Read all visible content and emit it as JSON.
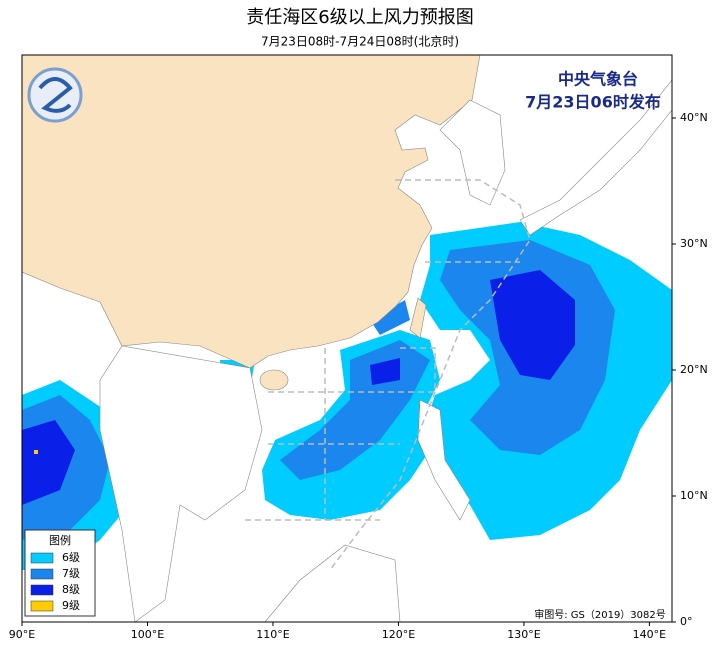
{
  "header": {
    "title": "责任海区6级以上风力预报图",
    "subtitle": "7月23日08时-7月24日08时(北京时)"
  },
  "issuer": {
    "name": "中央气象台",
    "time": "7月23日06时发布"
  },
  "legend": {
    "title": "图例",
    "items": [
      {
        "label": "6级",
        "color": "#00ccff"
      },
      {
        "label": "7级",
        "color": "#1a86ee"
      },
      {
        "label": "8级",
        "color": "#0a1fe8"
      },
      {
        "label": "9级",
        "color": "#ffcc00"
      }
    ]
  },
  "map": {
    "lon_range": [
      90,
      141.8
    ],
    "lat_range": [
      0,
      45
    ],
    "lon_ticks": [
      {
        "value": 90,
        "label": "90°E"
      },
      {
        "value": 100,
        "label": "100°E"
      },
      {
        "value": 110,
        "label": "110°E"
      },
      {
        "value": 120,
        "label": "120°E"
      },
      {
        "value": 130,
        "label": "130°E"
      },
      {
        "value": 140,
        "label": "140°E"
      }
    ],
    "lat_ticks": [
      {
        "value": 0,
        "label": "0°"
      },
      {
        "value": 10,
        "label": "10°N"
      },
      {
        "value": 20,
        "label": "20°N"
      },
      {
        "value": 30,
        "label": "30°N"
      },
      {
        "value": 40,
        "label": "40°N"
      }
    ]
  },
  "footer": {
    "approval": "审图号: GS（2019）3082号"
  }
}
